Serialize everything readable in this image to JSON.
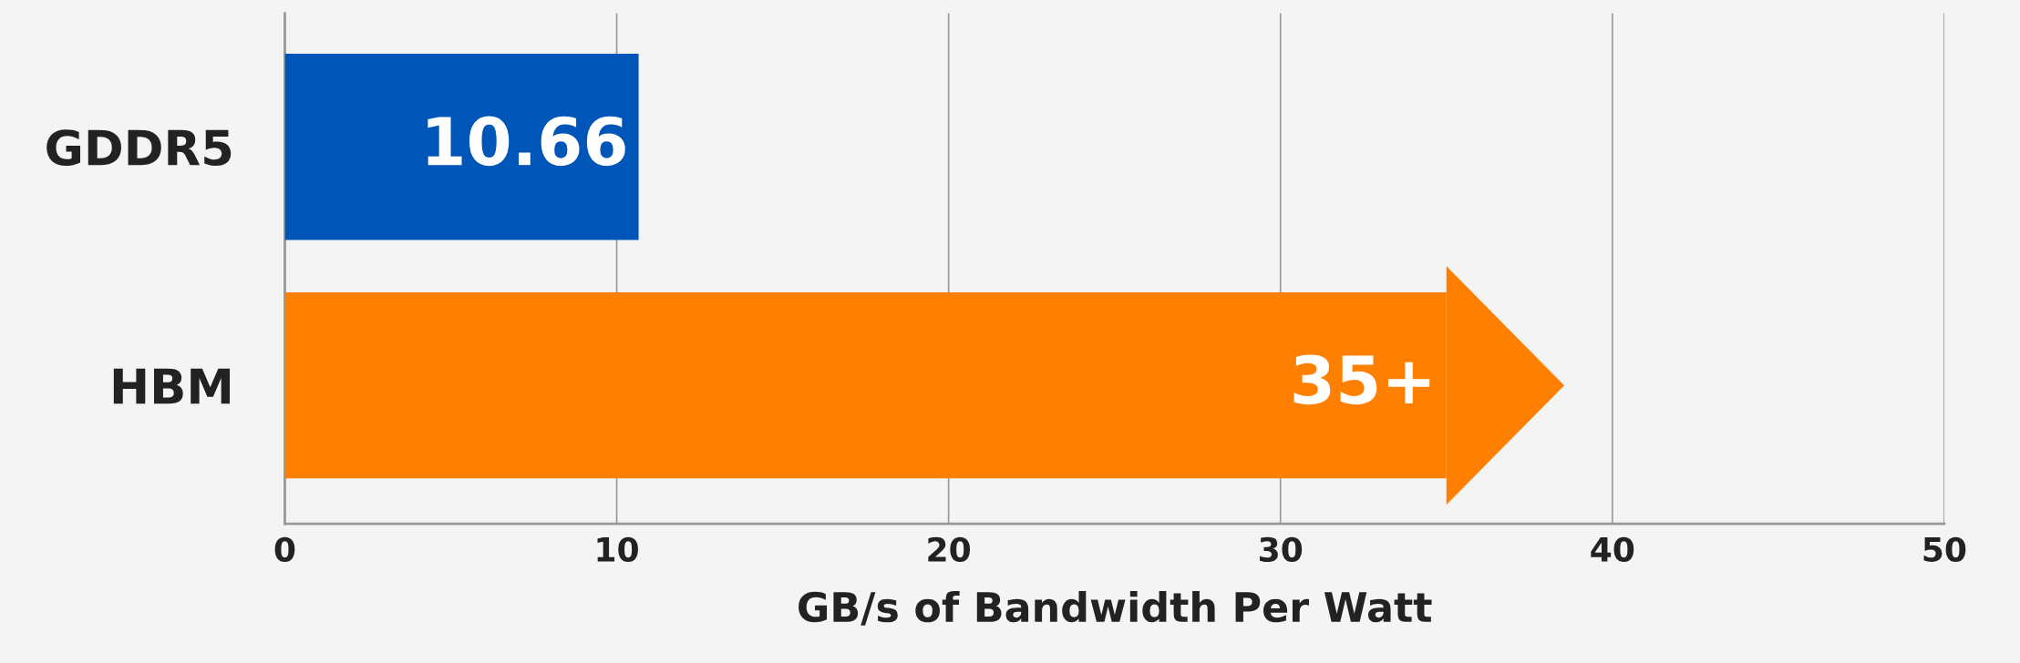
{
  "chart_data": {
    "type": "bar",
    "orientation": "horizontal",
    "xlabel": "GB/s of Bandwidth Per Watt",
    "categories": [
      "GDDR5",
      "HBM"
    ],
    "values": [
      10.66,
      35
    ],
    "colors": [
      "#0055b8",
      "#ff8000"
    ],
    "value_labels": [
      "10.66",
      "35+"
    ],
    "xlim": [
      0,
      50
    ],
    "xticks": [
      0,
      10,
      20,
      30,
      40,
      50
    ],
    "grid": "x"
  }
}
